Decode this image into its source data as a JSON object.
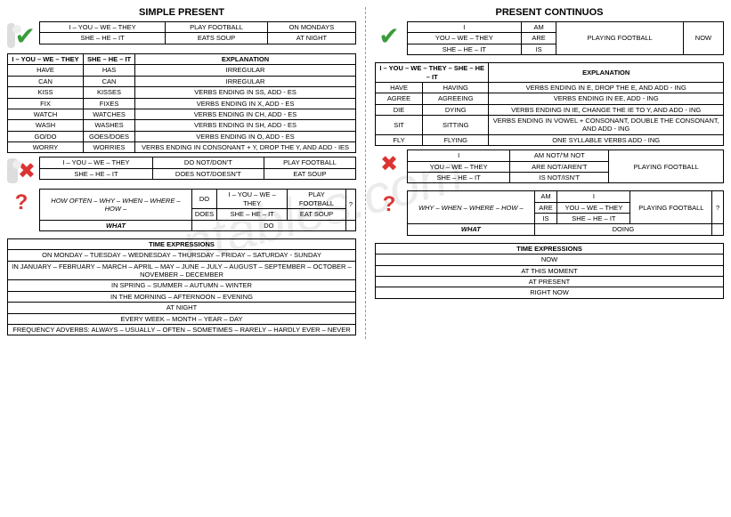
{
  "left": {
    "title": "SIMPLE PRESENT",
    "affirm": {
      "r1c1": "I – YOU – WE – THEY",
      "r1c2": "PLAY FOOTBALL",
      "r1c3": "ON MONDAYS",
      "r2c1": "SHE – HE – IT",
      "r2c2": "EATS SOUP",
      "r2c3": "AT NIGHT"
    },
    "rules": {
      "h1": "I – YOU – WE – THEY",
      "h2": "SHE – HE – IT",
      "h3": "EXPLANATION",
      "rows": [
        [
          "HAVE",
          "HAS",
          "IRREGULAR"
        ],
        [
          "CAN",
          "CAN",
          "IRREGULAR"
        ],
        [
          "KISS",
          "KISSES",
          "VERBS ENDING IN SS, ADD - ES"
        ],
        [
          "FIX",
          "FIXES",
          "VERBS ENDING IN X, ADD - ES"
        ],
        [
          "WATCH",
          "WATCHES",
          "VERBS ENDING IN CH, ADD - ES"
        ],
        [
          "WASH",
          "WASHES",
          "VERBS ENDING IN SH, ADD - ES"
        ],
        [
          "GO/DO",
          "GOES/DOES",
          "VERBS ENDING IN O, ADD - ES"
        ],
        [
          "WORRY",
          "WORRIES",
          "VERBS ENDING IN CONSONANT + Y, DROP THE Y, AND ADD - IES"
        ]
      ]
    },
    "neg": {
      "r1c1": "I – YOU – WE – THEY",
      "r1c2": "DO NOT/DON'T",
      "r1c3": "PLAY FOOTBALL",
      "r2c1": "SHE – HE – IT",
      "r2c2": "DOES NOT/DOESN'T",
      "r2c3": "EAT SOUP"
    },
    "q": {
      "c1": "HOW OFTEN – WHY – WHEN – WHERE – HOW –",
      "r1c2": "DO",
      "r1c3": "I – YOU – WE – THEY",
      "r1c4": "PLAY FOOTBALL",
      "r2c2": "DOES",
      "r2c3": "SHE – HE – IT",
      "r2c4": "EAT SOUP",
      "qmark": "?",
      "what": "WHAT",
      "do": "DO"
    },
    "time": {
      "title": "TIME EXPRESSIONS",
      "rows": [
        "ON MONDAY – TUESDAY – WEDNESDAY – THURSDAY – FRIDAY – SATURDAY - SUNDAY",
        "IN JANUARY – FEBRUARY – MARCH – APRIL – MAY – JUNE – JULY – AUGUST – SEPTEMBER – OCTOBER – NOVEMBER – DECEMBER",
        "IN SPRING – SUMMER – AUTUMN – WINTER",
        "IN THE MORNING – AFTERNOON – EVENING",
        "AT NIGHT",
        "EVERY WEEK – MONTH – YEAR – DAY",
        "FREQUENCY ADVERBS: ALWAYS – USUALLY – OFTEN – SOMETIMES – RARELY – HARDLY EVER – NEVER"
      ]
    }
  },
  "right": {
    "title": "PRESENT CONTINUOS",
    "affirm": {
      "r1c1": "I",
      "r1c2": "AM",
      "r2c1": "YOU – WE – THEY",
      "r2c2": "ARE",
      "r3c1": "SHE – HE – IT",
      "r3c2": "IS",
      "obj": "PLAYING FOOTBALL",
      "time": "NOW"
    },
    "rules": {
      "h1": "I – YOU – WE – THEY – SHE – HE – IT",
      "h2": "EXPLANATION",
      "rows": [
        [
          "HAVE",
          "HAVING",
          "VERBS ENDING IN E, DROP THE E, AND ADD - ING"
        ],
        [
          "AGREE",
          "AGREEING",
          "VERBS ENDING IN EE, ADD - ING"
        ],
        [
          "DIE",
          "DYING",
          "VERBS ENDING IN IE, CHANGE THE IE TO Y, AND ADD - ING"
        ],
        [
          "SIT",
          "SITTING",
          "VERBS ENDING IN VOWEL + CONSONANT, DOUBLE THE CONSONANT, AND ADD - ING"
        ],
        [
          "FLY",
          "FLYING",
          "ONE SYLLABLE VERBS ADD - ING"
        ]
      ]
    },
    "neg": {
      "r1c1": "I",
      "r1c2": "AM NOT/'M NOT",
      "r2c1": "YOU – WE – THEY",
      "r2c2": "ARE NOT/AREN'T",
      "r3c1": "SHE – HE – IT",
      "r3c2": "IS NOT/ISN'T",
      "obj": "PLAYING FOOTBALL"
    },
    "q": {
      "c1": "WHY – WHEN – WHERE – HOW –",
      "am": "AM",
      "i": "I",
      "are": "ARE",
      "ywt": "YOU – WE – THEY",
      "is": "IS",
      "shi": "SHE – HE – IT",
      "obj": "PLAYING FOOTBALL",
      "qmark": "?",
      "what": "WHAT",
      "doing": "DOING"
    },
    "time": {
      "title": "TIME EXPRESSIONS",
      "rows": [
        "NOW",
        "AT THIS MOMENT",
        "AT PRESENT",
        "RIGHT NOW"
      ]
    }
  }
}
